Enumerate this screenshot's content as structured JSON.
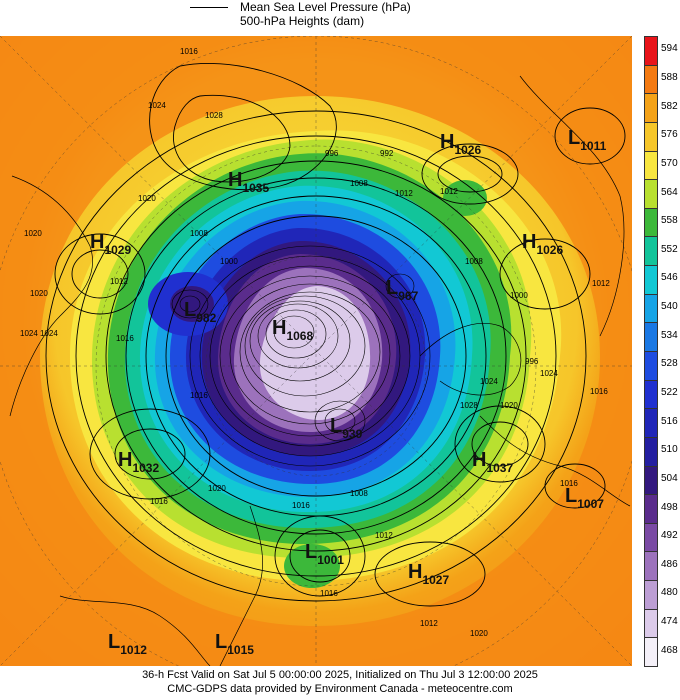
{
  "legend": {
    "line1": "Mean Sea Level Pressure (hPa)",
    "line2": "500-hPa Heights (dam)"
  },
  "colorbar": {
    "labels": [
      "594",
      "588",
      "582",
      "576",
      "570",
      "564",
      "558",
      "552",
      "546",
      "540",
      "534",
      "528",
      "522",
      "516",
      "510",
      "504",
      "498",
      "492",
      "486",
      "480",
      "474",
      "468"
    ],
    "colors": [
      "#e8141a",
      "#f47a12",
      "#f4a218",
      "#f6c62a",
      "#f8e640",
      "#b8e030",
      "#3cb83a",
      "#12c49a",
      "#12c8d4",
      "#16a4e6",
      "#1a78e4",
      "#1e4ce0",
      "#2030d0",
      "#2026b8",
      "#231ea0",
      "#32187e",
      "#5a2c8c",
      "#7a4aa4",
      "#9c72bc",
      "#bc9ed4",
      "#dccbea",
      "#f4f0f8"
    ]
  },
  "map": {
    "highs": [
      {
        "label": "H",
        "value": "1026"
      },
      {
        "label": "H",
        "value": "1035"
      },
      {
        "label": "H",
        "value": "1029"
      },
      {
        "label": "H",
        "value": "1026"
      },
      {
        "label": "H",
        "value": "1068"
      },
      {
        "label": "H",
        "value": "1032"
      },
      {
        "label": "H",
        "value": "1037"
      },
      {
        "label": "H",
        "value": "1027"
      }
    ],
    "lows": [
      {
        "label": "L",
        "value": "1011"
      },
      {
        "label": "L",
        "value": "967"
      },
      {
        "label": "L",
        "value": "982"
      },
      {
        "label": "L",
        "value": "939"
      },
      {
        "label": "L",
        "value": "1007"
      },
      {
        "label": "L",
        "value": "1001"
      },
      {
        "label": "L",
        "value": "1012"
      },
      {
        "label": "L",
        "value": "1015"
      }
    ],
    "isobar_labels": [
      "1016",
      "1024",
      "1028",
      "1020",
      "1020",
      "1012",
      "1016",
      "1020",
      "1024",
      "1008",
      "1000",
      "996",
      "992",
      "1008",
      "1012",
      "1012",
      "1008",
      "1000",
      "996",
      "1012",
      "1016",
      "1024",
      "1020",
      "1016",
      "1016",
      "1020",
      "1012",
      "1028",
      "1024",
      "1016",
      "1012",
      "1008",
      "1016",
      "1020",
      "1024",
      "1016"
    ]
  },
  "footer": {
    "line1": "36-h Fcst Valid on Sat Jul  5 00:00:00 2025, Initialized on Thu Jul  3 12:00:00 2025",
    "line2": "CMC-GDPS data provided by Environment Canada - meteocentre.com"
  }
}
